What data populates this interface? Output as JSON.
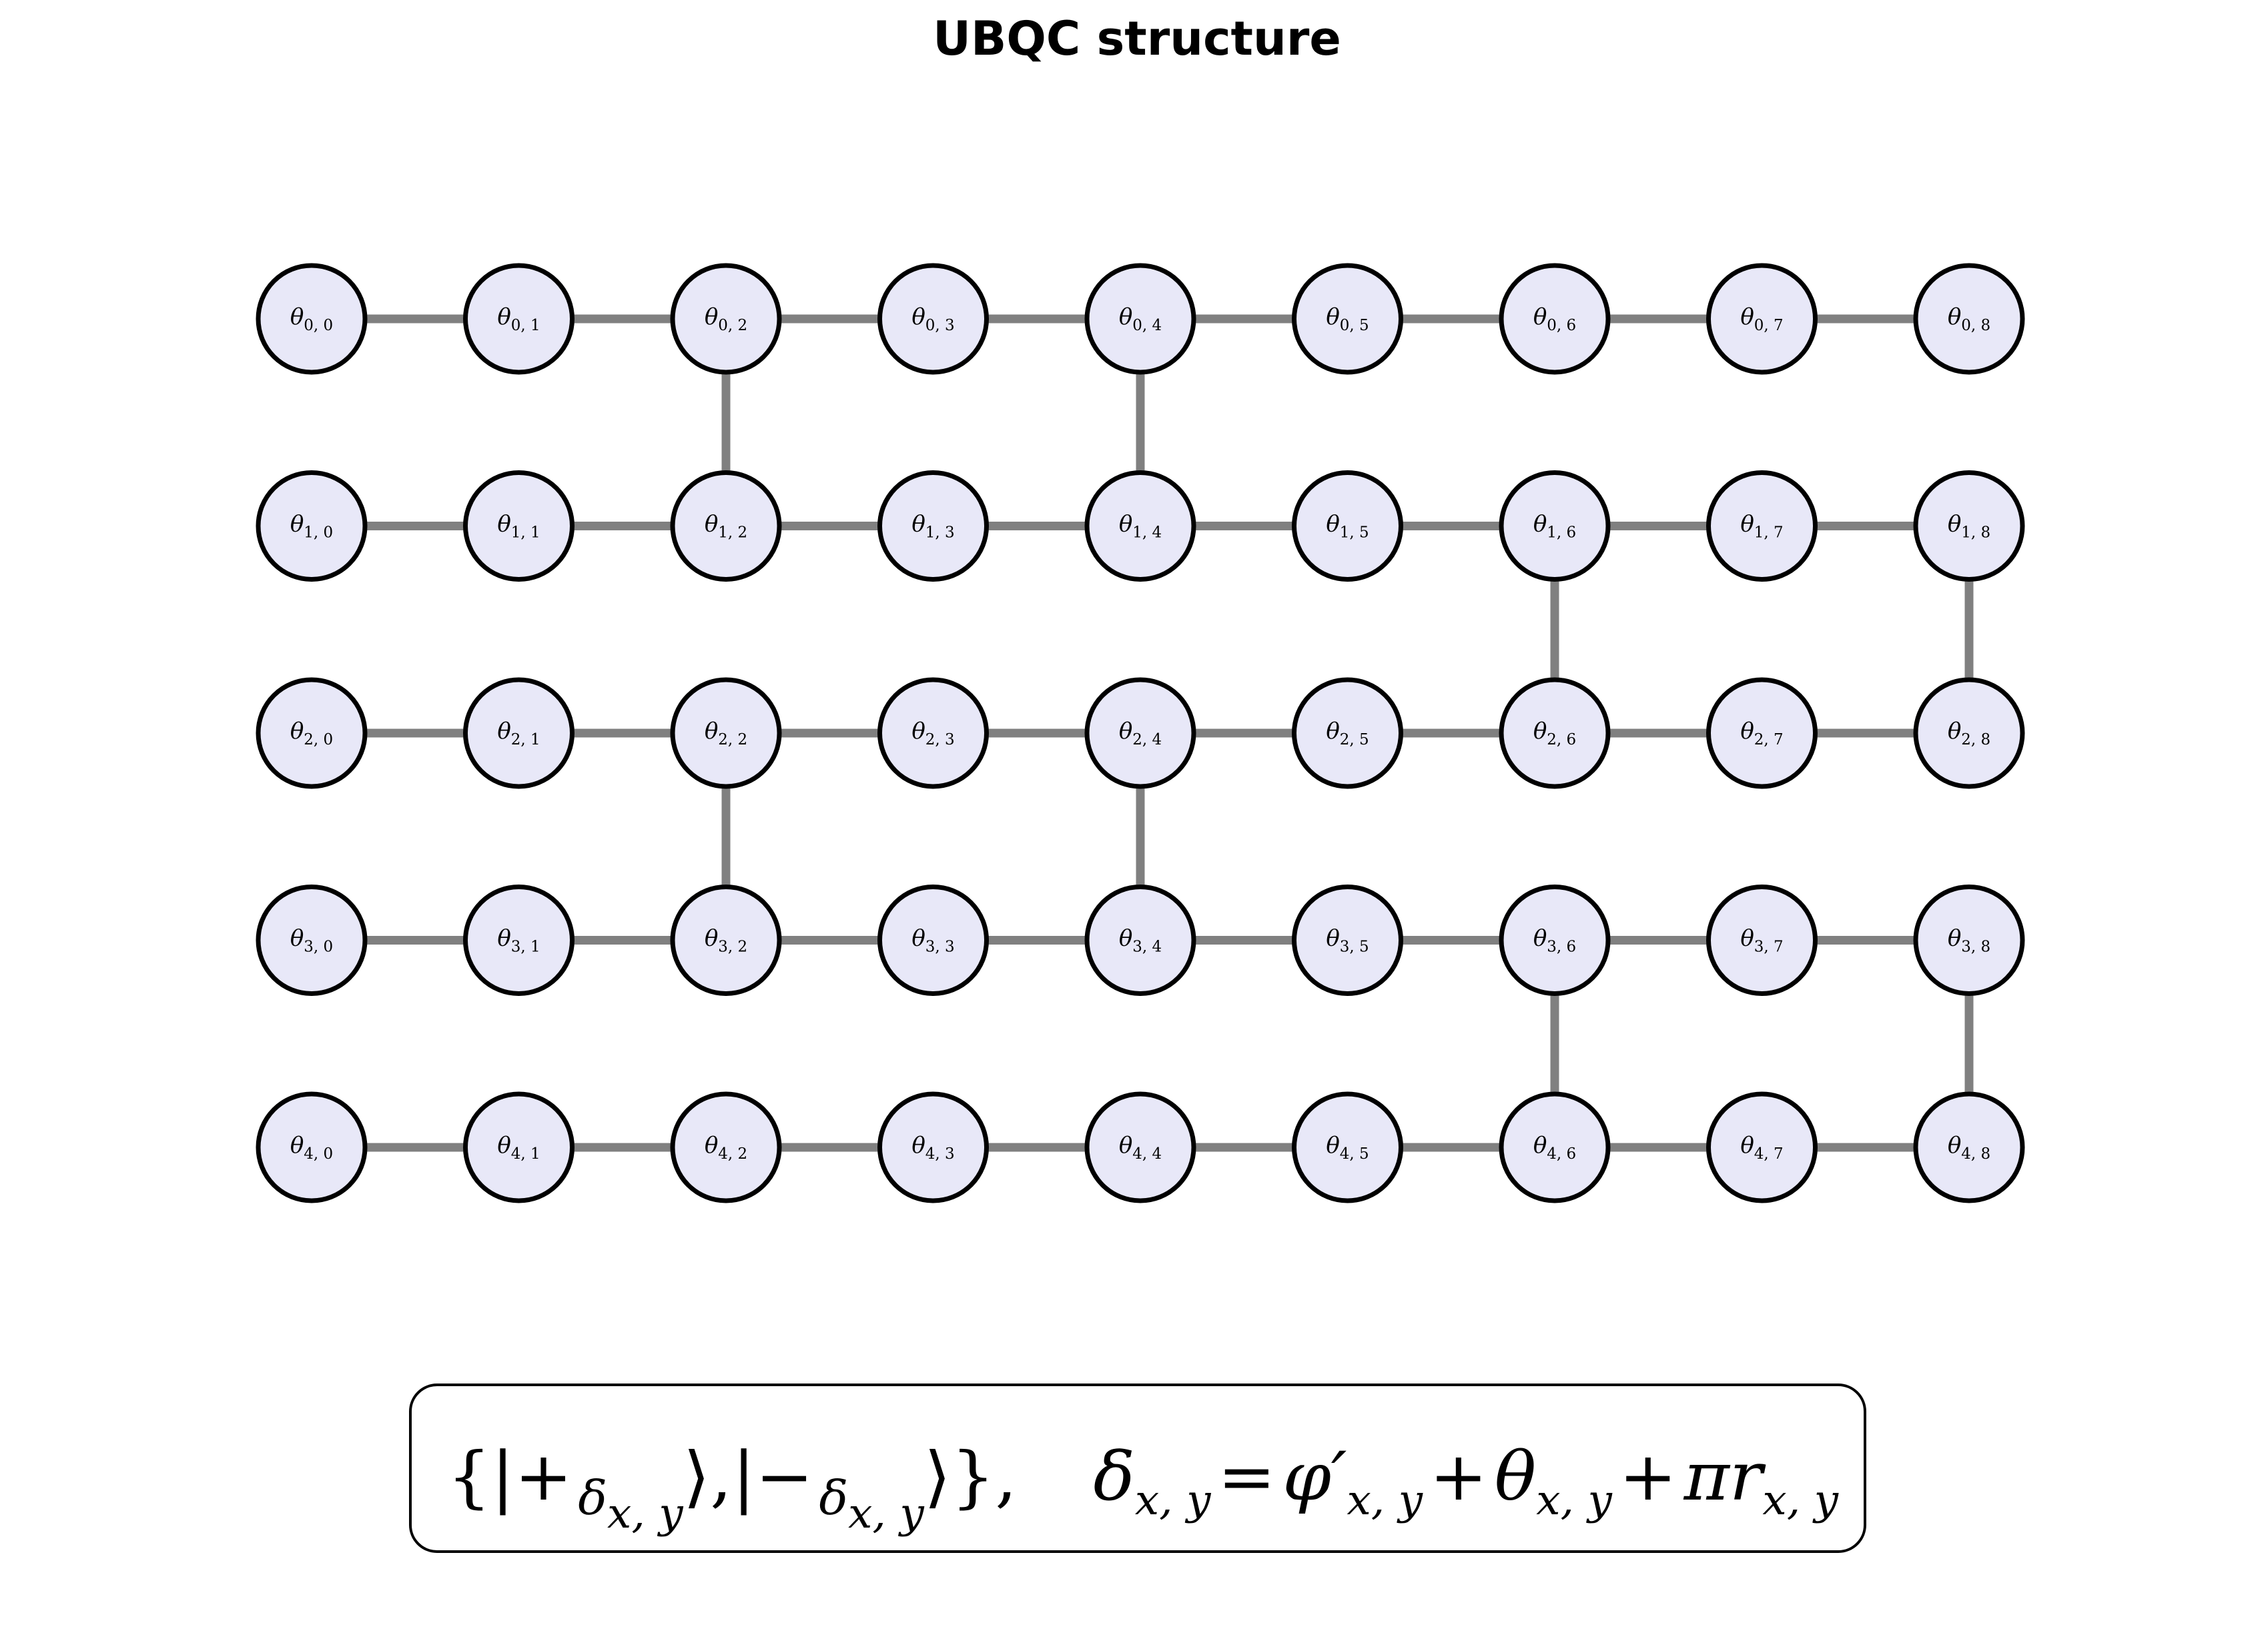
{
  "title": "UBQC structure",
  "colors": {
    "node_fill": "#e8e8f8",
    "node_stroke": "#000000",
    "edge": "#808080",
    "background": "#ffffff"
  },
  "grid": {
    "rows": 5,
    "cols": 9,
    "symbol": "θ",
    "vertical_edges": [
      [
        0,
        2
      ],
      [
        0,
        4
      ],
      [
        1,
        6
      ],
      [
        1,
        8
      ],
      [
        2,
        2
      ],
      [
        2,
        4
      ],
      [
        3,
        6
      ],
      [
        3,
        8
      ]
    ]
  },
  "formula": {
    "open_brace": "{",
    "ket_plus_open": "|+",
    "ket_minus_open": "|−",
    "delta": "δ",
    "sub_xy": "x, y",
    "ket_close": "⟩",
    "comma": ",",
    "close_brace": "}",
    "equals": "=",
    "phi_prime": "φ′",
    "plus": "+",
    "theta": "θ",
    "pi_r": "πr"
  }
}
